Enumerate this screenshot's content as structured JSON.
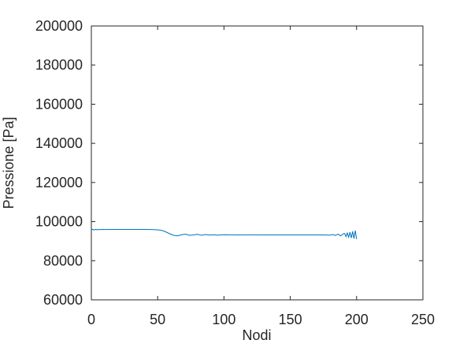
{
  "chart_data": {
    "type": "line",
    "xlabel": "Nodi",
    "ylabel": "Pressione [Pa]",
    "x": [
      0,
      1,
      2,
      3,
      4,
      5,
      6,
      8,
      10,
      15,
      20,
      30,
      40,
      45,
      50,
      53,
      56,
      59,
      62,
      65,
      68,
      71,
      74,
      77,
      80,
      83,
      86,
      89,
      92,
      95,
      100,
      110,
      120,
      130,
      140,
      150,
      160,
      170,
      175,
      180,
      182,
      184,
      186,
      188,
      190,
      191,
      192,
      193,
      194,
      195,
      196,
      197,
      198,
      199,
      200
    ],
    "series": [
      {
        "color": "#0072bd",
        "values": [
          95800,
          96100,
          95700,
          96050,
          95800,
          96000,
          95900,
          96000,
          95950,
          96000,
          96000,
          96000,
          96000,
          95950,
          95800,
          95500,
          94800,
          93800,
          93000,
          92700,
          93300,
          93600,
          93000,
          93200,
          93500,
          93000,
          93400,
          93100,
          93300,
          93100,
          93300,
          93200,
          93250,
          93200,
          93200,
          93200,
          93200,
          93200,
          93200,
          93100,
          93400,
          92900,
          93600,
          92700,
          93800,
          93900,
          92300,
          94200,
          92000,
          94600,
          91600,
          95000,
          91300,
          95400,
          91000
        ]
      }
    ],
    "xlim": [
      0,
      250
    ],
    "xticks": [
      0,
      50,
      100,
      150,
      200,
      250
    ],
    "ylim": [
      60000,
      200000
    ],
    "yticks": [
      60000,
      80000,
      100000,
      120000,
      140000,
      160000,
      180000,
      200000
    ]
  }
}
